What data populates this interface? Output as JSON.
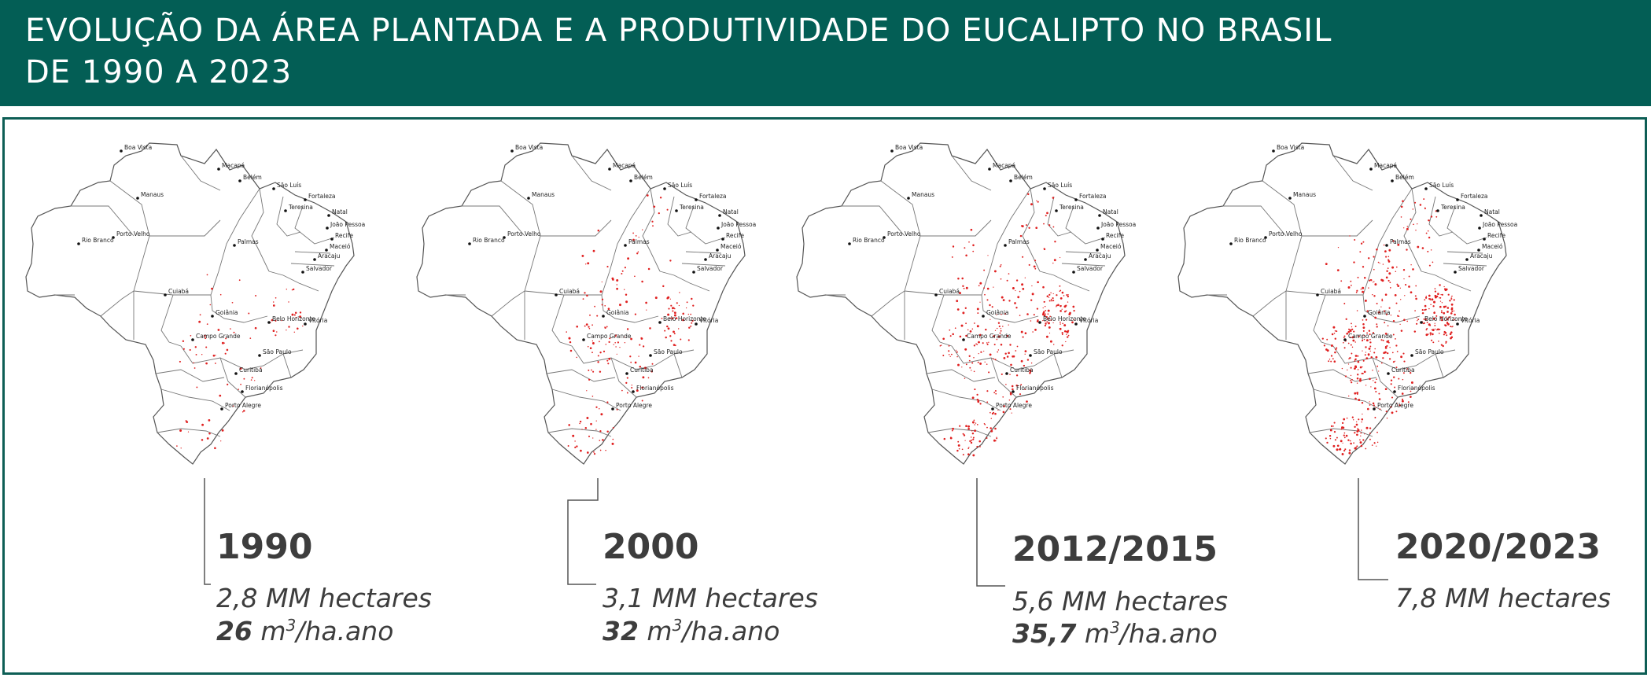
{
  "title": {
    "line1": "EVOLUÇÃO DA ÁREA PLANTADA E A PRODUTIVIDADE DO EUCALIPTO NO BRASIL",
    "line2": "DE 1990 A 2023"
  },
  "cities": [
    {
      "name": "Boa Vista"
    },
    {
      "name": "Macapá"
    },
    {
      "name": "Belém"
    },
    {
      "name": "Manaus"
    },
    {
      "name": "São Luís"
    },
    {
      "name": "Fortaleza"
    },
    {
      "name": "Teresina"
    },
    {
      "name": "Natal"
    },
    {
      "name": "João Pessoa"
    },
    {
      "name": "Recife"
    },
    {
      "name": "Maceió"
    },
    {
      "name": "Aracaju"
    },
    {
      "name": "Rio Branco"
    },
    {
      "name": "Porto Velho"
    },
    {
      "name": "Palmas"
    },
    {
      "name": "Salvador"
    },
    {
      "name": "Cuiabá"
    },
    {
      "name": "Goiânia"
    },
    {
      "name": "Belo Horizonte"
    },
    {
      "name": "Vitória"
    },
    {
      "name": "Campo Grande"
    },
    {
      "name": "São Paulo"
    },
    {
      "name": "Curitiba"
    },
    {
      "name": "Florianópolis"
    },
    {
      "name": "Porto Alegre"
    }
  ],
  "periods": [
    {
      "year": "1990",
      "area": "2,8 MM hectares",
      "prod_value": "26",
      "prod_unit": " m",
      "prod_sup": "3",
      "prod_unit_tail": "/ha.ano",
      "density": 0.2
    },
    {
      "year": "2000",
      "area": "3,1 MM hectares",
      "prod_value": "32",
      "prod_unit": " m",
      "prod_sup": "3",
      "prod_unit_tail": "/ha.ano",
      "density": 0.4
    },
    {
      "year": "2012/2015",
      "area": "5,6 MM hectares",
      "prod_value": "35,7",
      "prod_unit": " m",
      "prod_sup": "3",
      "prod_unit_tail": "/ha.ano",
      "density": 0.7
    },
    {
      "year": "2020/2023",
      "area": "7,8 MM hectares",
      "density": 1.0
    }
  ],
  "colors": {
    "header": "#035e55",
    "frame": "#0d5e55",
    "plantation": "#e02020",
    "text": "#3d3d3d"
  }
}
